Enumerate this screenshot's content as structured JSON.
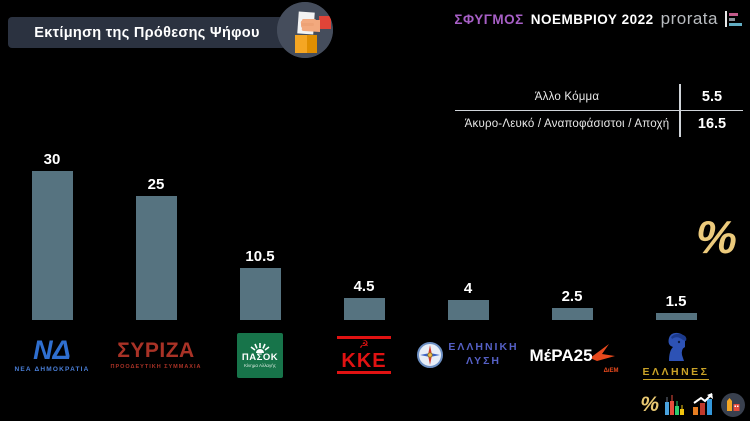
{
  "header": {
    "title": "Εκτίμηση της Πρόθεσης Ψήφου",
    "survey_name": "ΣΦΥΓΜΟΣ",
    "survey_period": "ΝΟΕΜΒΡΙΟΥ 2022",
    "brand_name": "prorata"
  },
  "summary_table": {
    "rows": [
      {
        "label": "Άλλο Κόμμα",
        "value": "5.5"
      },
      {
        "label": "Άκυρο-Λευκό / Αναποφάσιστοι / Αποχή",
        "value": "16.5"
      }
    ]
  },
  "unit_symbol": "%",
  "chart_data": {
    "type": "bar",
    "title": "Εκτίμηση της Πρόθεσης Ψήφου",
    "categories": [
      "ΝΕΑ ΔΗΜΟΚΡΑΤΙΑ",
      "ΣΥΡΙΖΑ",
      "ΠΑΣΟΚ",
      "ΚΚΕ",
      "ΕΛΛΗΝΙΚΗ ΛΥΣΗ",
      "ΜέΡΑ25",
      "ΕΛΛΗΝΕΣ"
    ],
    "values": [
      30,
      25,
      10.5,
      4.5,
      4,
      2.5,
      1.5
    ],
    "unit": "%",
    "ylim": [
      0,
      32
    ],
    "grid": false,
    "legend": "none",
    "bar_color": "#567380",
    "value_label_color": "#ffffff",
    "background_color": "#000000",
    "accent_gold": "#ecca7c",
    "accent_purple": "#a75fc6"
  },
  "parties": [
    {
      "abbr": "ΝΔ",
      "caption": "ΝΕΑ ΔΗΜΟΚΡΑΤΙΑ"
    },
    {
      "abbr": "ΣΥΡΙΖΑ",
      "caption": "ΠΡΟΟΔΕΥΤΙΚΗ ΣΥΜΜΑΧΙΑ"
    },
    {
      "abbr": "ΠΑΣΟΚ",
      "caption": "Κίνημα Αλλαγής"
    },
    {
      "abbr": "ΚΚΕ",
      "caption": ""
    },
    {
      "abbr": "ΕΛΛΗΝΙΚΗ",
      "caption": "ΛΥΣΗ"
    },
    {
      "abbr": "ΜέΡΑ25",
      "caption": "ΔιΕΜ"
    },
    {
      "abbr": "ΕΛΛΗΝΕΣ",
      "caption": ""
    }
  ]
}
